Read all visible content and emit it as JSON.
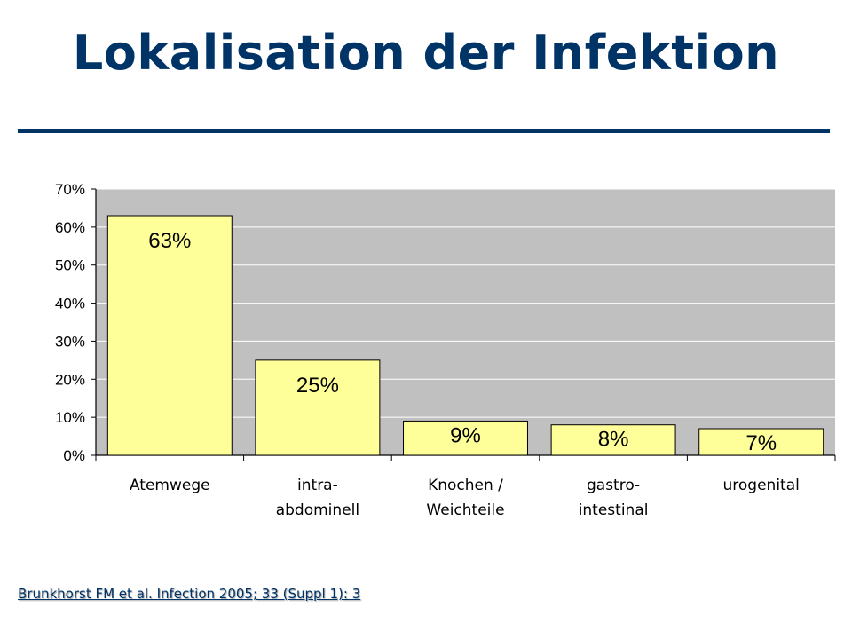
{
  "slide": {
    "title": "Lokalisation der Infektion",
    "source": "Brunkhorst FM et al. Infection 2005; 33 (Suppl 1): 3"
  },
  "colors": {
    "title": "#003366",
    "plot_area": "#c0c0c0",
    "bar_fill": "#ffff99",
    "bar_stroke": "#000000"
  },
  "chart_data": {
    "type": "bar",
    "categories": [
      [
        "Atemwege"
      ],
      [
        "intra-",
        "abdominell"
      ],
      [
        "Knochen /",
        "Weichteile"
      ],
      [
        "gastro-",
        "intestinal"
      ],
      [
        "urogenital"
      ]
    ],
    "values": [
      63,
      25,
      9,
      8,
      7
    ],
    "data_labels": [
      "63%",
      "25%",
      "9%",
      "8%",
      "7%"
    ],
    "yticks": [
      "0%",
      "10%",
      "20%",
      "30%",
      "40%",
      "50%",
      "60%",
      "70%"
    ],
    "ylim": [
      0,
      70
    ],
    "grid": true,
    "legend": "none"
  }
}
